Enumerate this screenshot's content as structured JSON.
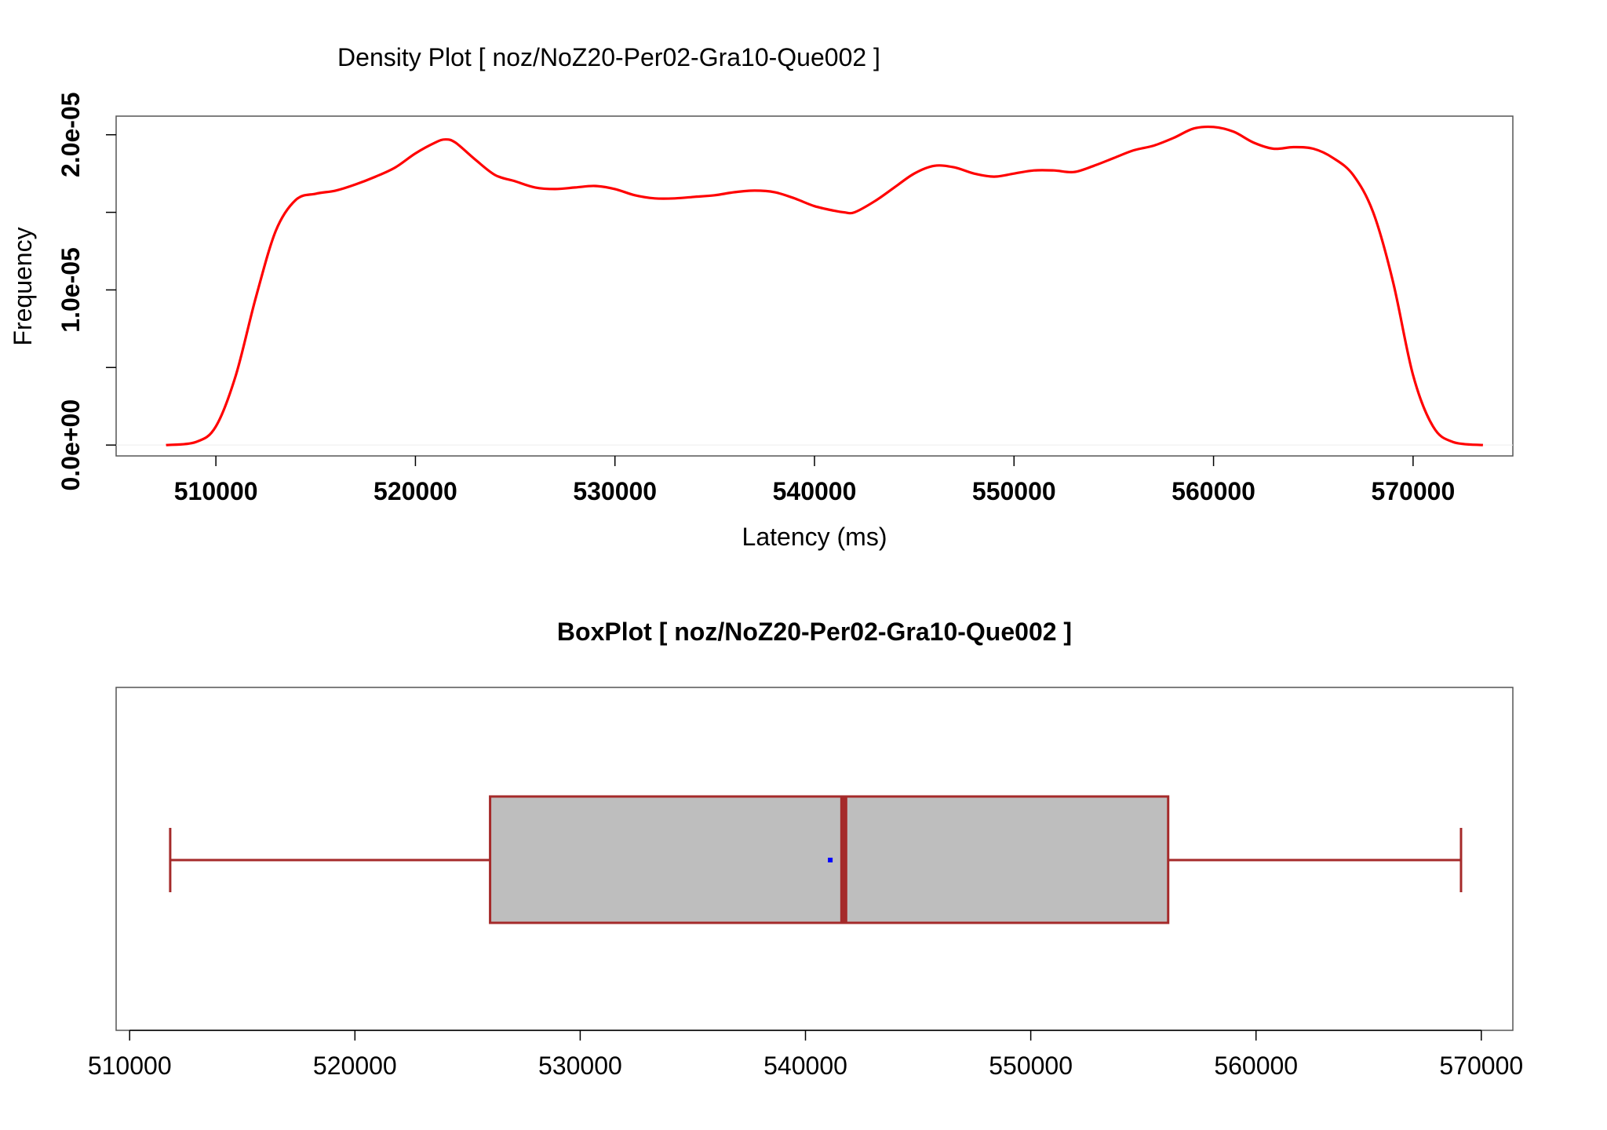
{
  "chart_data": [
    {
      "type": "line",
      "title": "Density Plot [ noz/NoZ20-Per02-Gra10-Que002 ]",
      "xlabel": "Latency (ms)",
      "ylabel": "Frequency",
      "xlim": [
        505000,
        575000
      ],
      "ylim": [
        -7e-07,
        2.12e-05
      ],
      "x_ticks": [
        510000,
        520000,
        530000,
        540000,
        550000,
        560000,
        570000
      ],
      "x_tick_labels": [
        "510000",
        "520000",
        "530000",
        "540000",
        "550000",
        "560000",
        "570000"
      ],
      "y_ticks": [
        0,
        5e-06,
        1e-05,
        1.5e-05,
        2e-05
      ],
      "y_tick_labels": [
        "0.0e+00",
        "",
        "1.0e-05",
        "",
        "2.0e-05"
      ],
      "grid": false,
      "line_color": "#ff0000",
      "series": [
        {
          "x": [
            507500,
            509000,
            510000,
            511000,
            512000,
            513000,
            514000,
            515000,
            516000,
            517000,
            518000,
            519000,
            520000,
            521000,
            521500,
            522000,
            523000,
            524000,
            525000,
            526000,
            527000,
            528000,
            529000,
            530000,
            531000,
            532000,
            533000,
            534000,
            535000,
            536000,
            537000,
            538000,
            539000,
            540000,
            541000,
            541500,
            542000,
            543000,
            544000,
            545000,
            546000,
            547000,
            548000,
            549000,
            550000,
            551000,
            552000,
            553000,
            554000,
            555000,
            556000,
            557000,
            558000,
            559000,
            560000,
            561000,
            562000,
            563000,
            564000,
            565000,
            566000,
            567000,
            568000,
            569000,
            570000,
            571000,
            572000,
            573500
          ],
          "y": [
            0.0,
            2e-07,
            1.2e-06,
            4.5e-06,
            9.5e-06,
            1.38e-05,
            1.58e-05,
            1.62e-05,
            1.64e-05,
            1.68e-05,
            1.73e-05,
            1.79e-05,
            1.88e-05,
            1.95e-05,
            1.97e-05,
            1.95e-05,
            1.84e-05,
            1.74e-05,
            1.7e-05,
            1.66e-05,
            1.65e-05,
            1.66e-05,
            1.67e-05,
            1.65e-05,
            1.61e-05,
            1.59e-05,
            1.59e-05,
            1.6e-05,
            1.61e-05,
            1.63e-05,
            1.64e-05,
            1.63e-05,
            1.59e-05,
            1.54e-05,
            1.51e-05,
            1.5e-05,
            1.5e-05,
            1.57e-05,
            1.66e-05,
            1.75e-05,
            1.8e-05,
            1.79e-05,
            1.75e-05,
            1.73e-05,
            1.75e-05,
            1.77e-05,
            1.77e-05,
            1.76e-05,
            1.8e-05,
            1.85e-05,
            1.9e-05,
            1.93e-05,
            1.98e-05,
            2.04e-05,
            2.05e-05,
            2.02e-05,
            1.95e-05,
            1.91e-05,
            1.92e-05,
            1.91e-05,
            1.85e-05,
            1.74e-05,
            1.5e-05,
            1.05e-05,
            4.5e-06,
            1.2e-06,
            2e-07,
            0.0
          ]
        }
      ]
    },
    {
      "type": "box",
      "title": "BoxPlot [ noz/NoZ20-Per02-Gra10-Que002 ]",
      "orientation": "horizontal",
      "xlim": [
        509400,
        571400
      ],
      "x_ticks": [
        510000,
        520000,
        530000,
        540000,
        550000,
        560000,
        570000
      ],
      "x_tick_labels": [
        "510000",
        "520000",
        "530000",
        "540000",
        "550000",
        "560000",
        "570000"
      ],
      "box_fill": "#bebebe",
      "box_border": "#a52a2a",
      "mean_color": "#0000ff",
      "stats": {
        "min": 511800,
        "q1": 526000,
        "median": 541700,
        "q3": 556100,
        "max": 569100,
        "mean": 541100
      }
    }
  ]
}
